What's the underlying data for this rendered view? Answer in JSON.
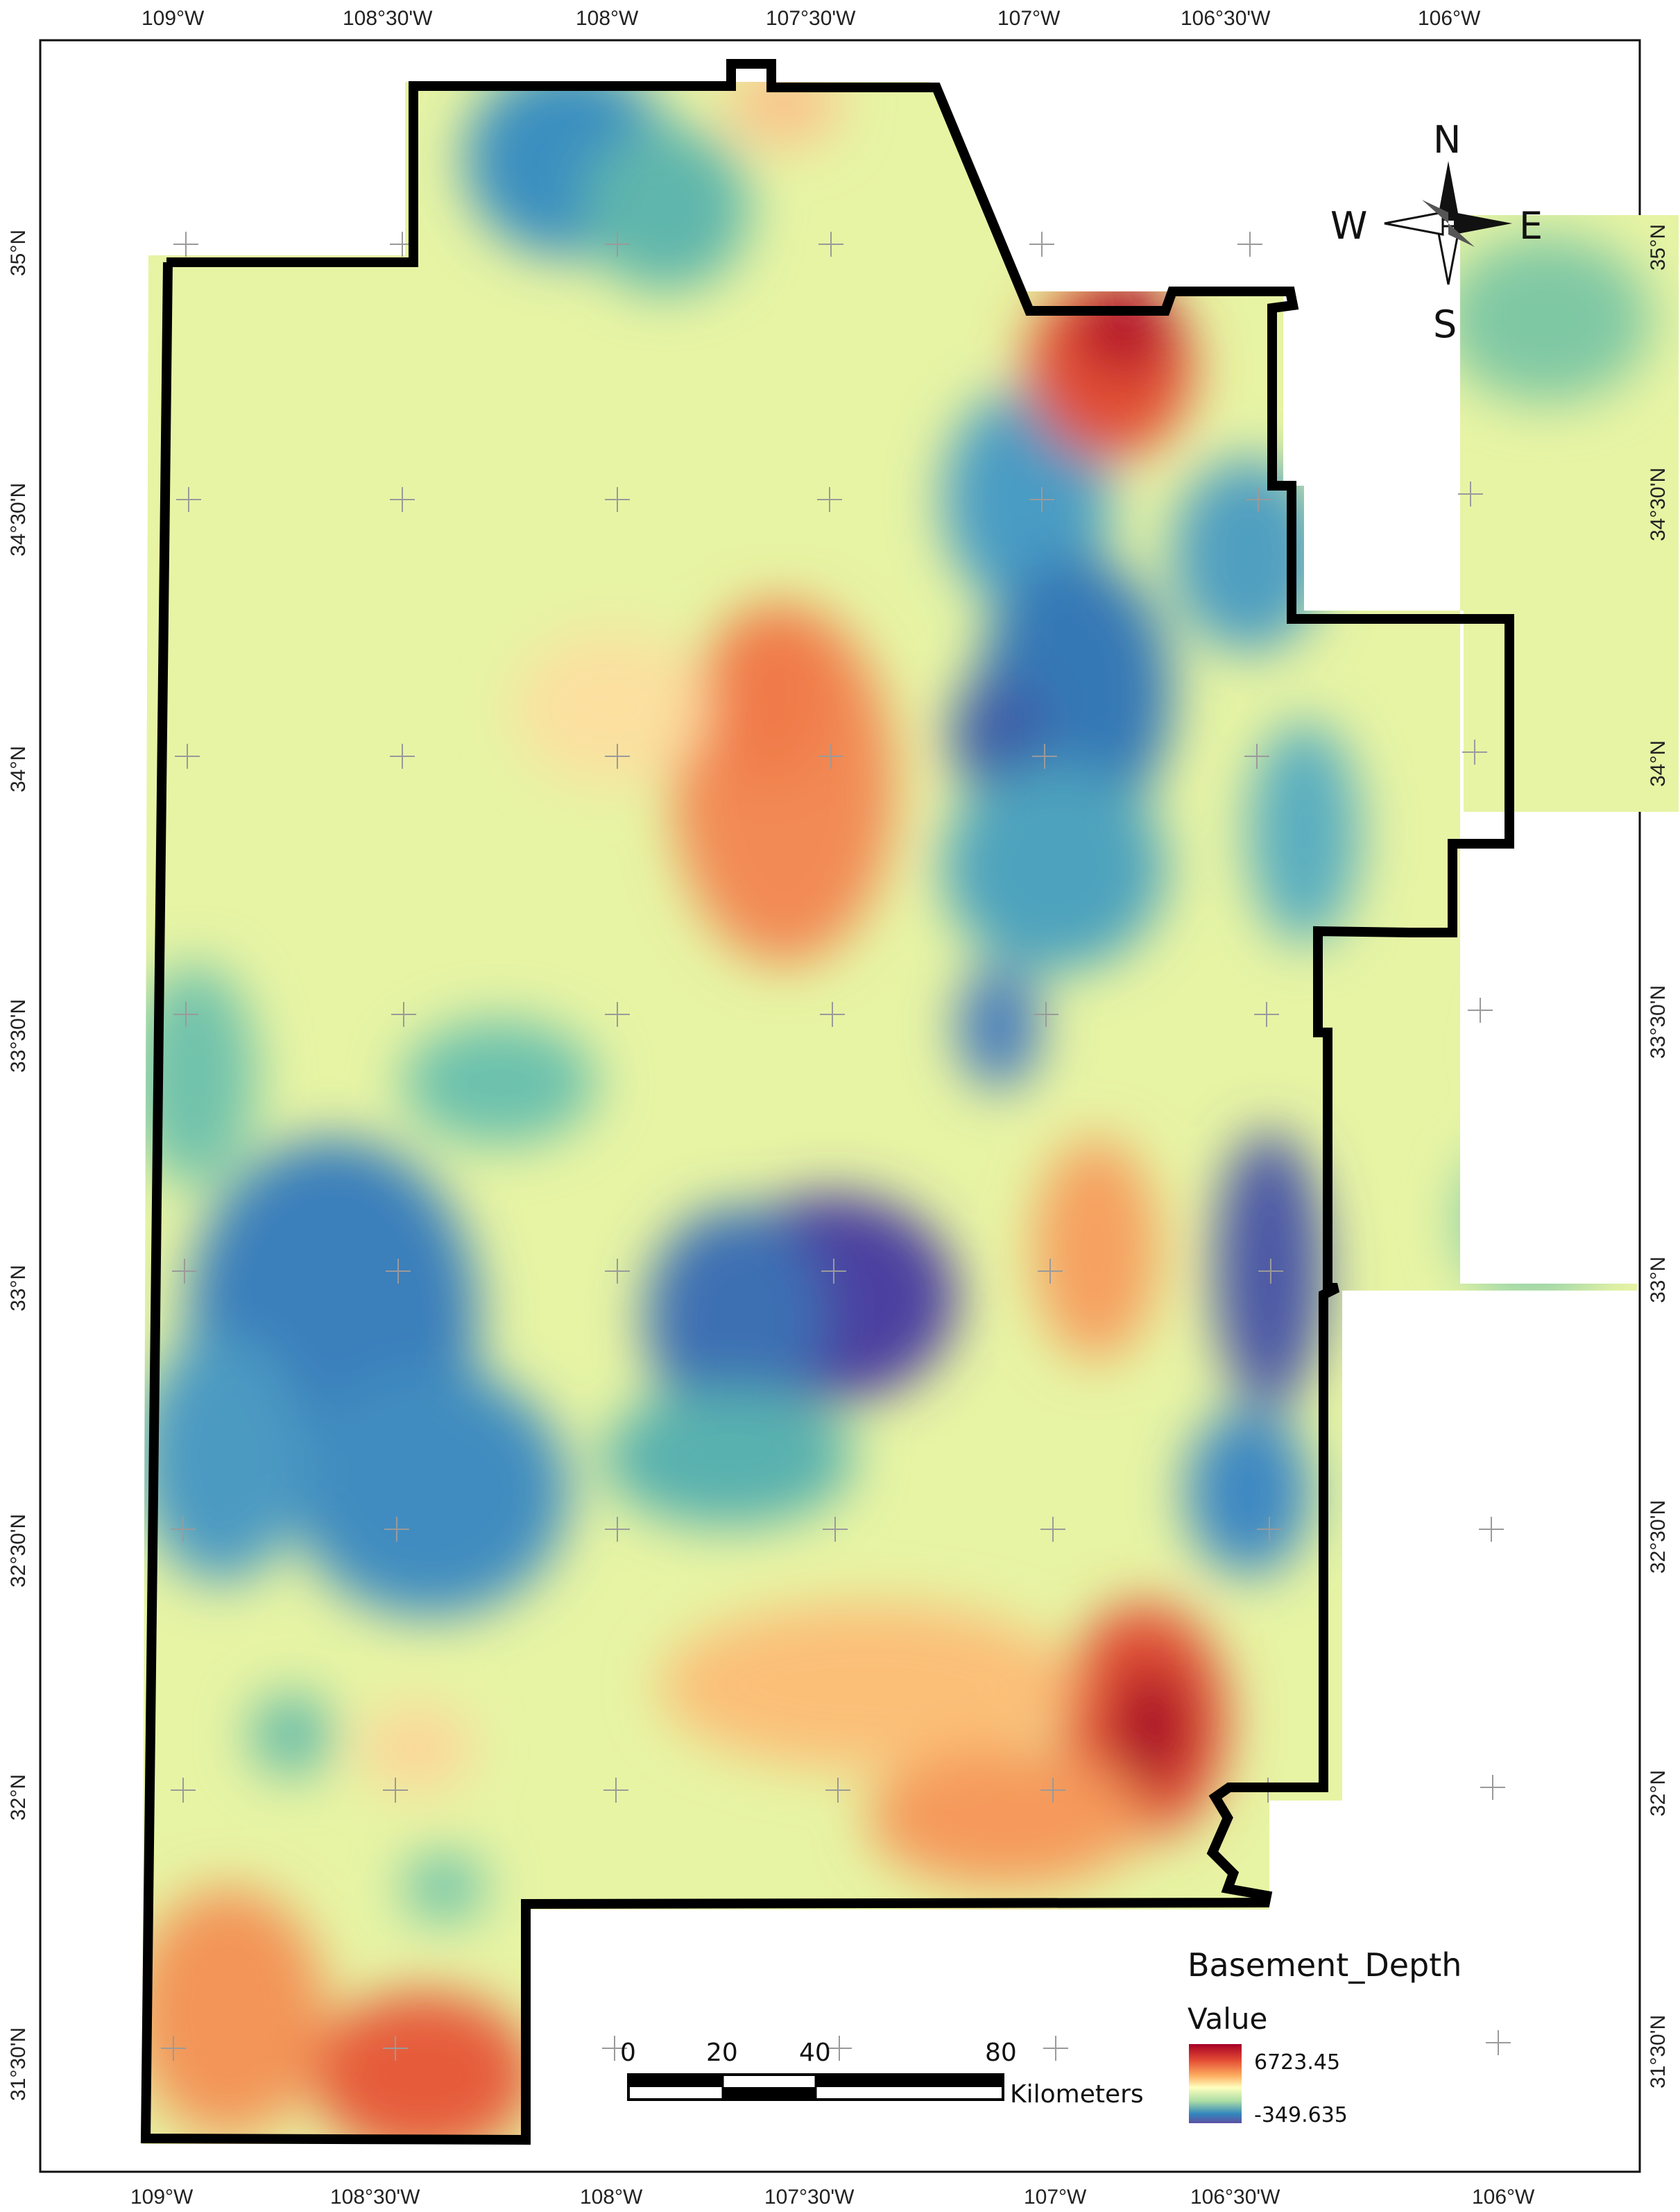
{
  "map": {
    "top_lon_labels": [
      "109°W",
      "108°30'W",
      "108°W",
      "107°30'W",
      "107°W",
      "106°30'W",
      "106°W"
    ],
    "bottom_lon_labels": [
      "109°W",
      "108°30'W",
      "108°W",
      "107°30'W",
      "107°W",
      "106°30'W",
      "106°W"
    ],
    "left_lat_labels": [
      "35°N",
      "34°30'N",
      "34°N",
      "33°30'N",
      "33°N",
      "32°30'N",
      "32°N",
      "31°30'N"
    ],
    "right_lat_labels": [
      "35°N",
      "34°30'N",
      "34°N",
      "33°30'N",
      "33°N",
      "32°30'N",
      "32°N",
      "31°30'N"
    ]
  },
  "legend": {
    "title": "Basement_Depth",
    "subtitle": "Value",
    "high": "6723.45",
    "low": "-349.635",
    "colors": [
      "#a50026",
      "#e34a33",
      "#fdae61",
      "#ffffbf",
      "#abdda4",
      "#3288bd",
      "#5e4fa2"
    ]
  },
  "scale_bar": {
    "ticks": [
      "0",
      "20",
      "40",
      "80"
    ],
    "units": "Kilometers"
  },
  "compass": {
    "n": "N",
    "s": "S",
    "e": "E",
    "w": "W"
  }
}
